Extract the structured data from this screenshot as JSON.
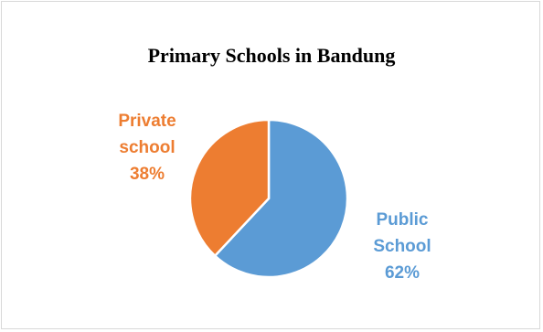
{
  "chart_data": {
    "type": "pie",
    "title": "Primary Schools in Bandung",
    "slices": [
      {
        "line1": "Public",
        "line2": "School",
        "percent_label": "62%",
        "value": 62,
        "color": "#5b9bd5"
      },
      {
        "line1": "Private",
        "line2": "school",
        "percent_label": "38%",
        "value": 38,
        "color": "#ed7d31"
      }
    ],
    "start_angle_deg": 0,
    "legend": "none"
  }
}
